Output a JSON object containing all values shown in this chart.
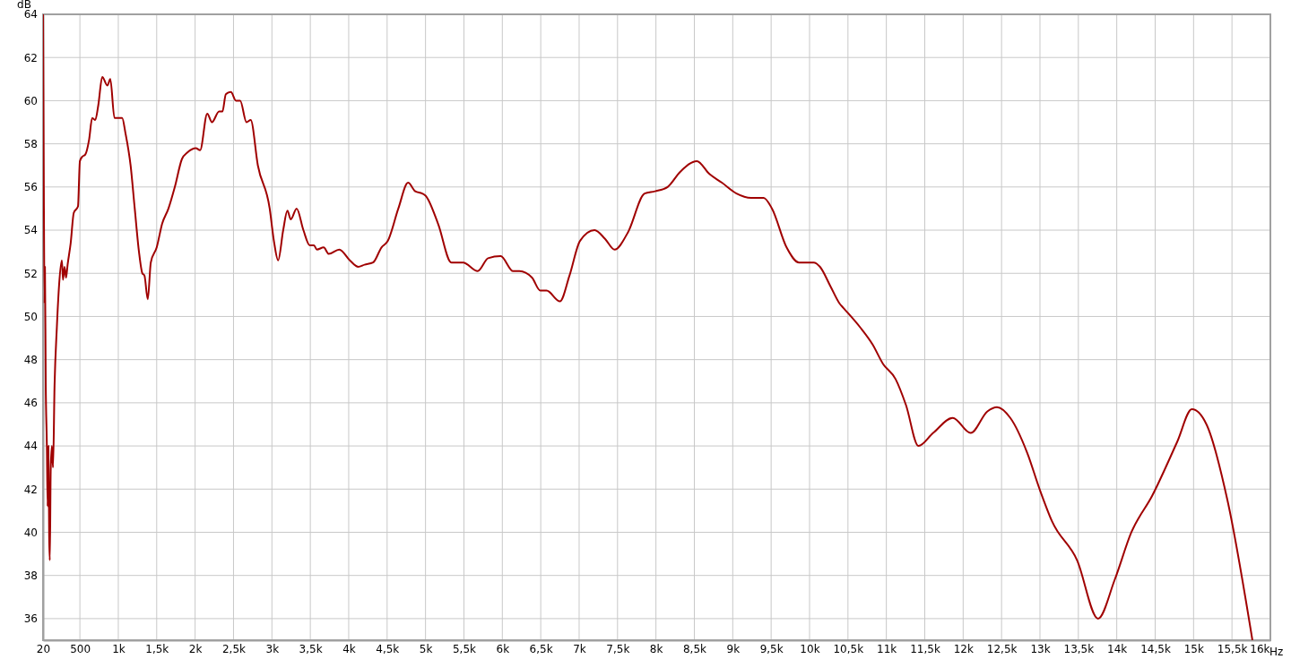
{
  "chart_data": {
    "type": "line",
    "ylabel": "dB",
    "xlabel": "Hz",
    "xlim": [
      20,
      16000
    ],
    "ylim": [
      35,
      64
    ],
    "xticks": [
      20,
      {
        "value": 500,
        "label": "500"
      },
      {
        "value": 1000,
        "label": "1k"
      },
      {
        "value": 1500,
        "label": "1,5k"
      },
      {
        "value": 2000,
        "label": "2k"
      },
      {
        "value": 2500,
        "label": "2,5k"
      },
      {
        "value": 3000,
        "label": "3k"
      },
      {
        "value": 3500,
        "label": "3,5k"
      },
      {
        "value": 4000,
        "label": "4k"
      },
      {
        "value": 4500,
        "label": "4,5k"
      },
      {
        "value": 5000,
        "label": "5k"
      },
      {
        "value": 5500,
        "label": "5,5k"
      },
      {
        "value": 6000,
        "label": "6k"
      },
      {
        "value": 6500,
        "label": "6,5k"
      },
      {
        "value": 7000,
        "label": "7k"
      },
      {
        "value": 7500,
        "label": "7,5k"
      },
      {
        "value": 8000,
        "label": "8k"
      },
      {
        "value": 8500,
        "label": "8,5k"
      },
      {
        "value": 9000,
        "label": "9k"
      },
      {
        "value": 9500,
        "label": "9,5k"
      },
      {
        "value": 10000,
        "label": "10k"
      },
      {
        "value": 10500,
        "label": "10,5k"
      },
      {
        "value": 11000,
        "label": "11k"
      },
      {
        "value": 11500,
        "label": "11,5k"
      },
      {
        "value": 12000,
        "label": "12k"
      },
      {
        "value": 12500,
        "label": "12,5k"
      },
      {
        "value": 13000,
        "label": "13k"
      },
      {
        "value": 13500,
        "label": "13,5k"
      },
      {
        "value": 14000,
        "label": "14k"
      },
      {
        "value": 14500,
        "label": "14,5k"
      },
      {
        "value": 15000,
        "label": "15k"
      },
      {
        "value": 15500,
        "label": "15,5k"
      },
      {
        "value": 16000,
        "label": "16k"
      }
    ],
    "yticks": [
      36,
      38,
      40,
      42,
      44,
      46,
      48,
      50,
      52,
      54,
      56,
      58,
      60,
      62,
      64
    ],
    "grid": true,
    "marker": "none",
    "line_style": "solid",
    "series": [
      {
        "color": "#a00000",
        "x": [
          20,
          30,
          40,
          45,
          55,
          70,
          80,
          90,
          100,
          108,
          120,
          135,
          150,
          170,
          200,
          230,
          265,
          280,
          300,
          320,
          340,
          380,
          420,
          475,
          500,
          530,
          570,
          620,
          660,
          700,
          740,
          791,
          857,
          896,
          950,
          1050,
          1093,
          1160,
          1214,
          1269,
          1313,
          1340,
          1384,
          1423,
          1500,
          1571,
          1653,
          1736,
          1829,
          1900,
          2010,
          2065,
          2158,
          2219,
          2312,
          2356,
          2400,
          2466,
          2532,
          2587,
          2669,
          2724,
          2817,
          2971,
          3026,
          3081,
          3147,
          3202,
          3246,
          3322,
          3410,
          3492,
          3547,
          3586,
          3674,
          3740,
          3877,
          4014,
          4124,
          4207,
          4317,
          4427,
          4509,
          4646,
          4773,
          4866,
          4957,
          5000,
          5163,
          5337,
          5489,
          5679,
          5815,
          5978,
          6141,
          6223,
          6386,
          6495,
          6576,
          6750,
          6875,
          7011,
          7201,
          7337,
          7462,
          7636,
          7853,
          7989,
          8152,
          8315,
          8533,
          8696,
          8859,
          9049,
          9239,
          9402,
          9511,
          9701,
          9864,
          10054,
          10136,
          10272,
          10391,
          10440,
          10658,
          10821,
          10957,
          11120,
          11255,
          11418,
          11609,
          11864,
          12098,
          12315,
          12440,
          12614,
          12832,
          12995,
          13158,
          13484,
          13756,
          13973,
          14190,
          14462,
          14788,
          14978,
          15168,
          15440,
          15766
        ],
        "values": [
          64,
          56,
          50.6,
          52.3,
          47,
          44,
          41.2,
          44,
          39.8,
          38.7,
          42.9,
          44,
          43,
          46.8,
          49.5,
          51.5,
          52.6,
          51.7,
          52.3,
          51.8,
          52.4,
          53.4,
          54.8,
          55.1,
          57.2,
          57.4,
          57.5,
          58.2,
          59.2,
          59.1,
          59.8,
          61.1,
          60.7,
          61,
          59.2,
          59.2,
          58.5,
          57,
          55,
          53,
          52,
          51.9,
          50.8,
          52.5,
          53.2,
          54.3,
          55,
          56,
          57.3,
          57.6,
          57.8,
          57.7,
          59.4,
          59,
          59.5,
          59.5,
          60.3,
          60.4,
          60,
          60,
          59,
          59.1,
          57,
          55,
          53.5,
          52.6,
          54,
          54.9,
          54.5,
          55,
          54,
          53.3,
          53.3,
          53.1,
          53.2,
          52.9,
          53.1,
          52.6,
          52.3,
          52.4,
          52.5,
          53.2,
          53.5,
          55,
          56.2,
          55.8,
          55.7,
          55.6,
          54.3,
          52.5,
          52.5,
          52.1,
          52.7,
          52.8,
          52.1,
          52.1,
          51.8,
          51.2,
          51.2,
          50.7,
          51.9,
          53.5,
          54,
          53.6,
          53.1,
          53.9,
          55.7,
          55.8,
          56,
          56.7,
          57.2,
          56.6,
          56.2,
          55.7,
          55.5,
          55.5,
          55,
          53.2,
          52.5,
          52.5,
          52.3,
          51.4,
          50.6,
          50.4,
          49.5,
          48.7,
          47.8,
          47.1,
          45.9,
          44,
          44.6,
          45.3,
          44.6,
          45.6,
          45.8,
          45.3,
          43.7,
          42,
          40.5,
          38.7,
          36,
          37.8,
          40,
          41.7,
          44.2,
          45.7,
          45,
          41.5,
          35
        ]
      }
    ]
  }
}
